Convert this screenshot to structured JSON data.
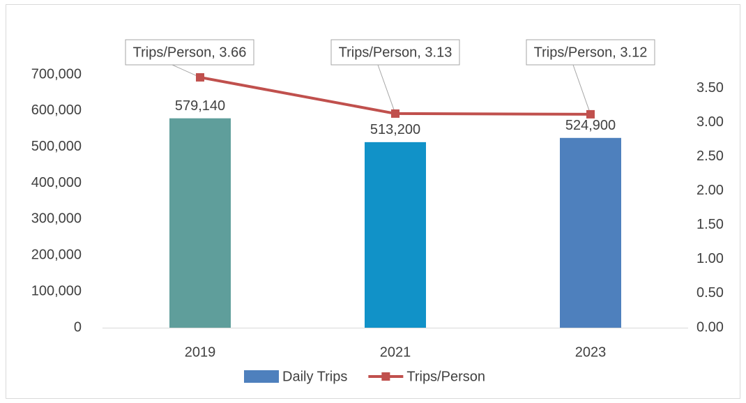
{
  "chart_data": {
    "type": "bar-line",
    "categories": [
      "2019",
      "2021",
      "2023"
    ],
    "series": [
      {
        "name": "Daily Trips",
        "type": "bar",
        "color": "#4e80bd",
        "colors": [
          "#5f9e9b",
          "#1192c8",
          "#4e80bd"
        ],
        "values": [
          579140,
          513200,
          524900
        ],
        "value_labels": [
          "579,140",
          "513,200",
          "524,900"
        ]
      },
      {
        "name": "Trips/Person",
        "type": "line",
        "axis": "y2",
        "color": "#c0504d",
        "values": [
          3.66,
          3.13,
          3.12
        ],
        "value_labels": [
          "Trips/Person, 3.66",
          "Trips/Person, 3.13",
          "Trips/Person, 3.12"
        ]
      }
    ],
    "ylim": [
      0,
      700000
    ],
    "yticks": [
      0,
      {
        "value": 100000,
        "label": "100,000"
      },
      {
        "value": 200000,
        "label": "200,000"
      },
      {
        "value": 300000,
        "label": "300,000"
      },
      {
        "value": 400000,
        "label": "400,000"
      },
      {
        "value": 500000,
        "label": "500,000"
      },
      {
        "value": 600000,
        "label": "600,000"
      },
      {
        "value": 700000,
        "label": "700,000"
      }
    ],
    "y2lim": [
      0,
      3.7
    ],
    "y2ticks": [
      {
        "value": 0,
        "label": "0.00"
      },
      {
        "value": 0.5,
        "label": "0.50"
      },
      {
        "value": 1,
        "label": "1.00"
      },
      {
        "value": 1.5,
        "label": "1.50"
      },
      {
        "value": 2,
        "label": "2.00"
      },
      {
        "value": 2.5,
        "label": "2.50"
      },
      {
        "value": 3,
        "label": "3.00"
      },
      {
        "value": 3.5,
        "label": "3.50"
      }
    ],
    "grid": false,
    "legend": "bottom"
  }
}
